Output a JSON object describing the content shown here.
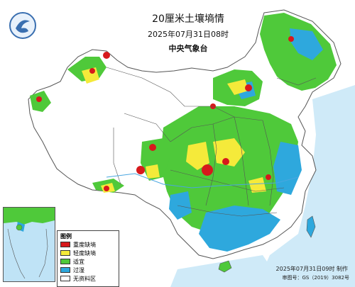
{
  "title": {
    "main": "20厘米土壤墒情",
    "date": "2025年07月31日08时",
    "agency": "中央气象台"
  },
  "legend": {
    "title": "图例",
    "items": [
      {
        "label": "重度缺墒",
        "color": "#d7191c"
      },
      {
        "label": "轻度缺墒",
        "color": "#f5ea3a"
      },
      {
        "label": "适宜",
        "color": "#4fc93a"
      },
      {
        "label": "过湿",
        "color": "#2ea8dd"
      },
      {
        "label": "无资料区",
        "color": "#ffffff"
      }
    ]
  },
  "footer": {
    "credit": "2025年07月31日09时 制作",
    "approval": "审图号：GS（2019）3082号"
  },
  "colors": {
    "sea": "#cfeaf8",
    "land": "#ffffff",
    "boundary": "#555555",
    "river": "#4aa6e0"
  }
}
